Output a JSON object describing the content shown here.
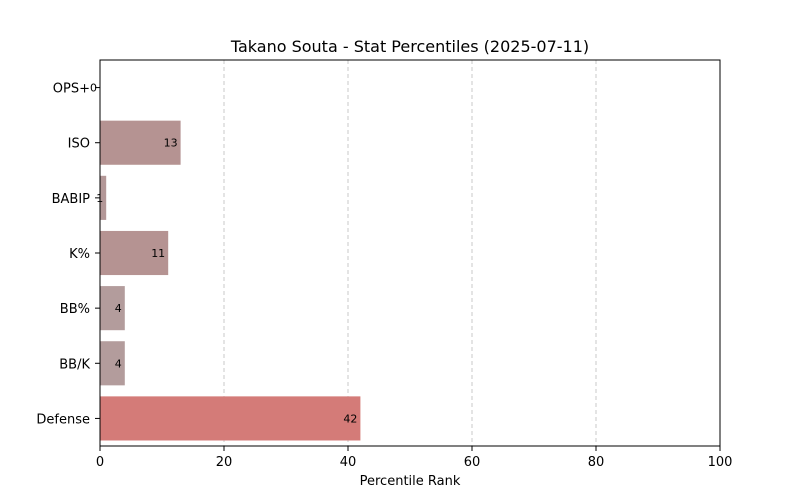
{
  "chart_data": {
    "type": "bar",
    "orientation": "horizontal",
    "title": "Takano Souta - Stat Percentiles (2025-07-11)",
    "xlabel": "Percentile Rank",
    "ylabel": "",
    "xlim": [
      0,
      100
    ],
    "xticks": [
      0,
      20,
      40,
      60,
      80,
      100
    ],
    "grid": "x-dashed",
    "categories": [
      "OPS+",
      "ISO",
      "BABIP",
      "K%",
      "BB%",
      "BB/K",
      "Defense"
    ],
    "values": [
      0,
      13,
      1,
      11,
      4,
      4,
      42
    ],
    "colors": [
      "#b19a9a",
      "#b59392",
      "#b39797",
      "#b59392",
      "#b39c9c",
      "#b39c9c",
      "#d47b78"
    ],
    "data_labels": [
      "0",
      "13",
      "1",
      "11",
      "4",
      "4",
      "42"
    ]
  }
}
